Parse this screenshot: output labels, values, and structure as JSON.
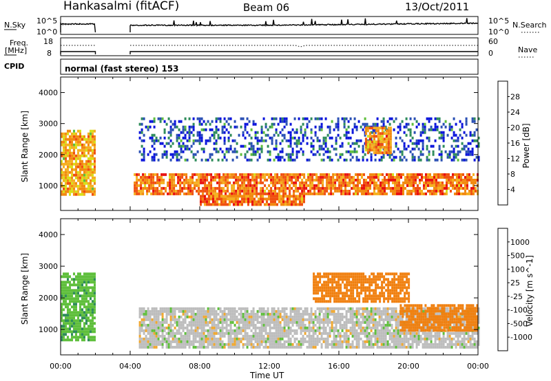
{
  "header": {
    "station": "Hankasalmi (fitACF)",
    "beam": "Beam 06",
    "date": "13/Oct/2011"
  },
  "summary_panels": {
    "nsky_label": "N.Sky",
    "nsky_ticks": [
      "10^5",
      "10^0"
    ],
    "nsearch_label": "N.Search",
    "nsearch_ticks": [
      "10^5",
      "10^0"
    ],
    "freq_label_line1": "Freq.",
    "freq_label_line2": "[MHz]",
    "freq_ticks": [
      "18",
      "8"
    ],
    "nave_label": "Nave",
    "nave_ticks": [
      "60",
      "0"
    ],
    "cpid_label": "CPID",
    "cpid_value": "normal (fast stereo) 153"
  },
  "colors": {
    "power_scale": [
      "#0a14dc",
      "#2a4fb4",
      "#2e8c5a",
      "#5fbf3c",
      "#d8e018",
      "#f5b020",
      "#f28a10",
      "#f05010",
      "#e81010"
    ],
    "velocity_scale": [
      "#1a2ab0",
      "#3f6fc4",
      "#2e8c5a",
      "#5fbf3c",
      "#bdbdbd",
      "#bdbdbd",
      "#f0a830",
      "#f08010",
      "#f04010",
      "#e81010"
    ]
  },
  "chart_data": [
    {
      "type": "heatmap",
      "title": "Power",
      "ylabel": "Slant Range [km]",
      "xlabel": "",
      "x_ticks": [
        "00:00",
        "04:00",
        "08:00",
        "12:00",
        "16:00",
        "20:00",
        "00:00"
      ],
      "xlim_hours": [
        0,
        24
      ],
      "y_ticks": [
        "4000",
        "3000",
        "2000",
        "1000"
      ],
      "ylim": [
        200,
        4500
      ],
      "colorbar_label": "Power [dB]",
      "colorbar_ticks": [
        "28",
        "24",
        "20",
        "16",
        "12",
        "8",
        "4"
      ],
      "data_gap_hours": [
        2,
        4
      ],
      "features": [
        {
          "name": "main echo band",
          "t_start": 4.2,
          "t_end": 24,
          "range_km": [
            700,
            1400
          ],
          "power_db": 28
        },
        {
          "name": "early echoes",
          "t_start": 0,
          "t_end": 2,
          "range_km": [
            700,
            2800
          ],
          "power_db": 24
        },
        {
          "name": "near-range echoes",
          "t_start": 8,
          "t_end": 14,
          "range_km": [
            400,
            700
          ],
          "power_db": 28
        },
        {
          "name": "far-range scatter",
          "t_start": 4.5,
          "t_end": 24,
          "range_km": [
            1800,
            3200
          ],
          "power_db": 10
        },
        {
          "name": "evening patch",
          "t_start": 17.5,
          "t_end": 19,
          "range_km": [
            2100,
            2900
          ],
          "power_db": 26
        }
      ]
    },
    {
      "type": "heatmap",
      "title": "Velocity",
      "ylabel": "Slant Range [km]",
      "xlabel": "Time UT",
      "x_ticks": [
        "00:00",
        "04:00",
        "08:00",
        "12:00",
        "16:00",
        "20:00",
        "00:00"
      ],
      "xlim_hours": [
        0,
        24
      ],
      "y_ticks": [
        "4000",
        "3000",
        "2000",
        "1000"
      ],
      "ylim": [
        200,
        4500
      ],
      "colorbar_label": "Velocity [m s^-1]",
      "colorbar_ticks": [
        "1000",
        "500",
        "100",
        "25",
        "-25",
        "-100",
        "-500",
        "-1000"
      ],
      "data_gap_hours": [
        2,
        4
      ],
      "features": [
        {
          "name": "ground scatter",
          "t_start": 4.5,
          "t_end": 24,
          "range_km": [
            400,
            1700
          ],
          "velocity_ms": 0
        },
        {
          "name": "early echoes",
          "t_start": 0,
          "t_end": 2,
          "range_km": [
            700,
            2800
          ],
          "velocity_ms": 80
        },
        {
          "name": "dusk receding flow",
          "t_start": 19.5,
          "t_end": 24,
          "range_km": [
            1000,
            1800
          ],
          "velocity_ms": -300
        },
        {
          "name": "afternoon patch",
          "t_start": 14.5,
          "t_end": 20,
          "range_km": [
            1900,
            2800
          ],
          "velocity_ms": -150
        }
      ]
    }
  ]
}
